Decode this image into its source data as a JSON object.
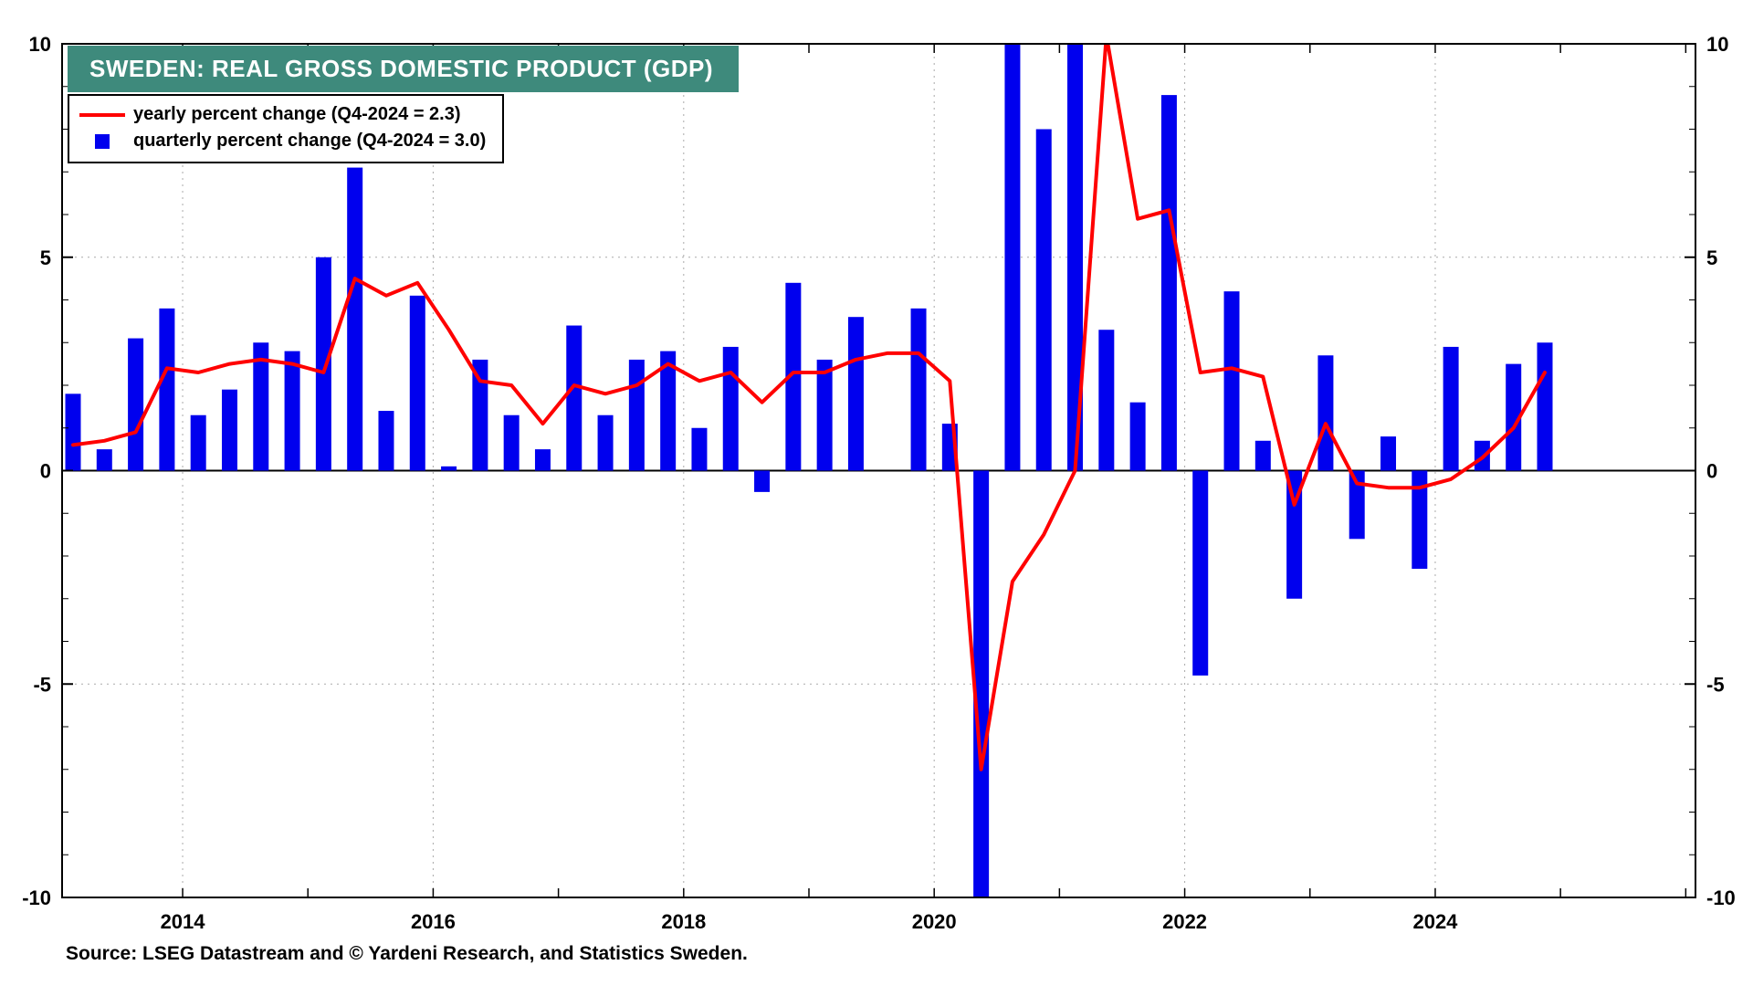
{
  "title": "SWEDEN: REAL GROSS DOMESTIC PRODUCT (GDP)",
  "source": "Source: LSEG Datastream and © Yardeni Research, and Statistics Sweden.",
  "colors": {
    "title_bg": "#3E8A7C",
    "bar": "#0000EE",
    "line": "#FF0000",
    "grid": "#AAAAAA",
    "axis": "#000000"
  },
  "legend": [
    {
      "marker": "line",
      "color": "#FF0000",
      "label": "yearly percent change (Q4-2024 = 2.3)"
    },
    {
      "marker": "square",
      "color": "#0000EE",
      "label": "quarterly percent change (Q4-2024 = 3.0)"
    }
  ],
  "chart_data": {
    "type": "combo (bar + line)",
    "frequency": "quarterly",
    "x_start": "2013-Q1",
    "x_end": "2024-Q4",
    "y_axis": {
      "min": -10,
      "max": 10,
      "ticks": [
        10,
        5,
        0,
        -5,
        -10
      ],
      "minor_tick_interval": 1,
      "labels_both_sides": true
    },
    "x_axis": {
      "labeled_years": [
        2014,
        2016,
        2018,
        2020,
        2022,
        2024
      ],
      "tick_years_start": 2014,
      "tick_years_end": 2026
    },
    "grid": "dotted horizontal at ±5 and dotted vertical at labeled years; solid zero line",
    "clipping": "values beyond ±10 are clipped at the axis limits",
    "series": [
      {
        "name": "quarterly percent change",
        "type": "bar",
        "color": "#0000EE",
        "last_value": 3.0,
        "values": [
          1.8,
          0.5,
          3.1,
          3.8,
          1.3,
          1.9,
          3.0,
          2.8,
          5.0,
          7.1,
          1.4,
          4.1,
          0.1,
          2.6,
          1.3,
          0.5,
          3.4,
          1.3,
          2.6,
          2.8,
          1.0,
          2.9,
          -0.5,
          4.4,
          2.6,
          3.6,
          0.0,
          3.8,
          1.1,
          -10.0,
          10.0,
          8.0,
          10.0,
          3.3,
          1.6,
          8.8,
          -4.8,
          4.2,
          0.7,
          -3.0,
          2.7,
          -1.6,
          0.8,
          -2.3,
          2.9,
          0.7,
          2.5,
          3.0
        ]
      },
      {
        "name": "yearly percent change",
        "type": "line",
        "color": "#FF0000",
        "last_value": 2.3,
        "values": [
          0.6,
          0.7,
          0.9,
          2.4,
          2.3,
          2.5,
          2.6,
          2.5,
          2.3,
          4.5,
          4.1,
          4.4,
          3.3,
          2.1,
          2.0,
          1.1,
          2.0,
          1.8,
          2.0,
          2.5,
          2.1,
          2.3,
          1.6,
          2.3,
          2.3,
          2.6,
          2.75,
          2.75,
          2.1,
          -7.0,
          -2.6,
          -1.5,
          0.0,
          10.2,
          5.9,
          6.1,
          2.3,
          2.4,
          2.2,
          -0.8,
          1.1,
          -0.3,
          -0.4,
          -0.4,
          -0.2,
          0.3,
          1.0,
          2.3
        ]
      }
    ]
  }
}
